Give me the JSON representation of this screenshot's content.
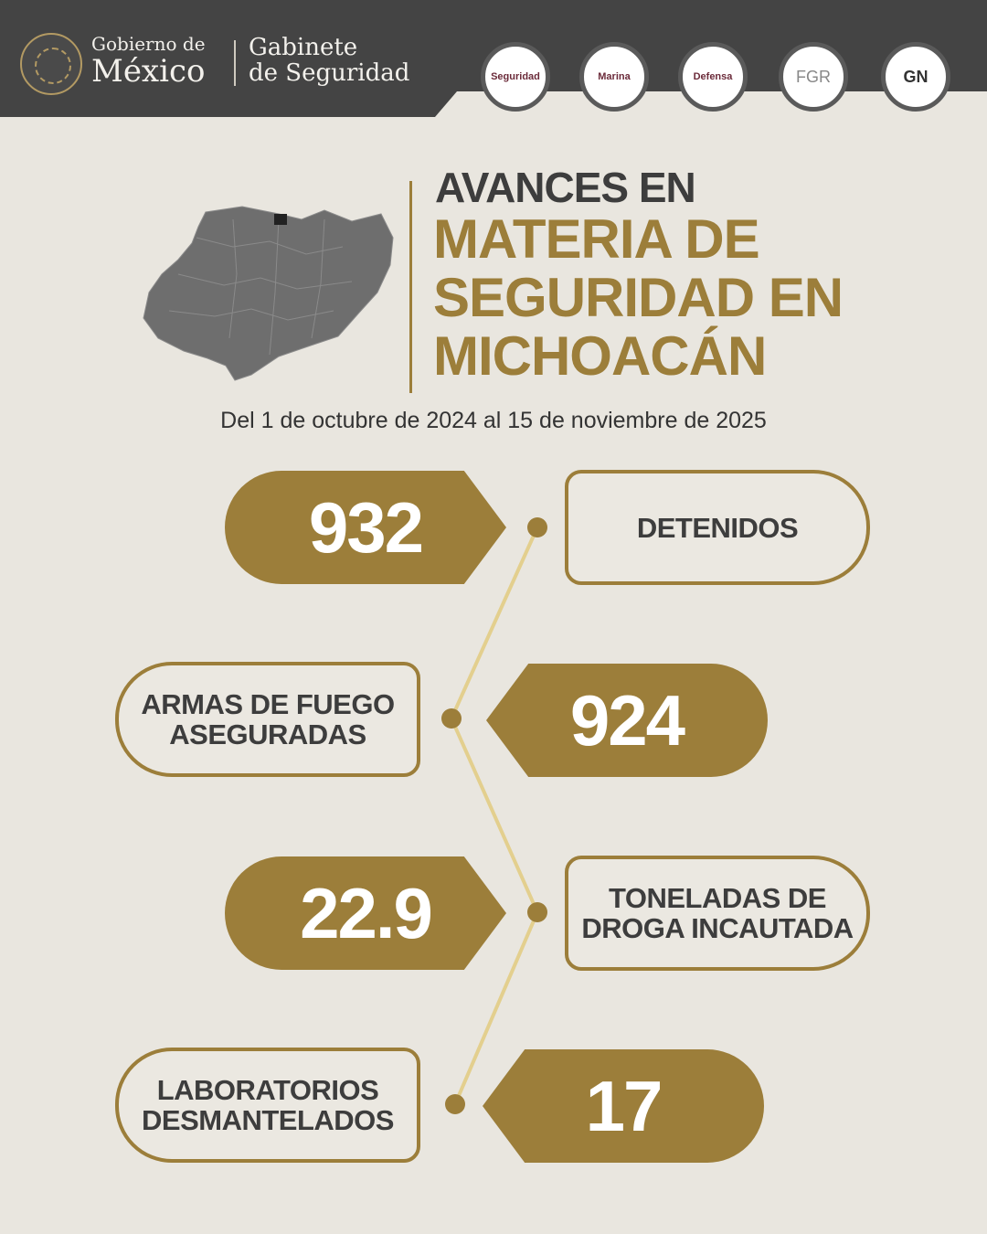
{
  "header": {
    "gov_line1": "Gobierno de",
    "gov_line2": "México",
    "gabinete_line1": "Gabinete",
    "gabinete_line2": "de Seguridad",
    "agencies": [
      "Seguridad",
      "Marina",
      "Defensa",
      "FGR",
      "GN"
    ]
  },
  "title": {
    "line1": "AVANCES EN",
    "line2": "MATERIA DE",
    "line3": "SEGURIDAD EN",
    "line4": "MICHOACÁN"
  },
  "date_range": "Del 1 de octubre de 2024 al 15 de noviembre de 2025",
  "stats": [
    {
      "value": "932",
      "label_line1": "DETENIDOS",
      "label_line2": ""
    },
    {
      "value": "924",
      "label_line1": "ARMAS DE FUEGO",
      "label_line2": "ASEGURADAS"
    },
    {
      "value": "22.9",
      "label_line1": "TONELADAS DE",
      "label_line2": "DROGA INCAUTADA"
    },
    {
      "value": "17",
      "label_line1": "LABORATORIOS",
      "label_line2": "DESMANTELADOS"
    }
  ],
  "colors": {
    "gold": "#9c7e3a",
    "background": "#e9e6df",
    "header": "#444444",
    "text_dark": "#3d3d3d"
  }
}
